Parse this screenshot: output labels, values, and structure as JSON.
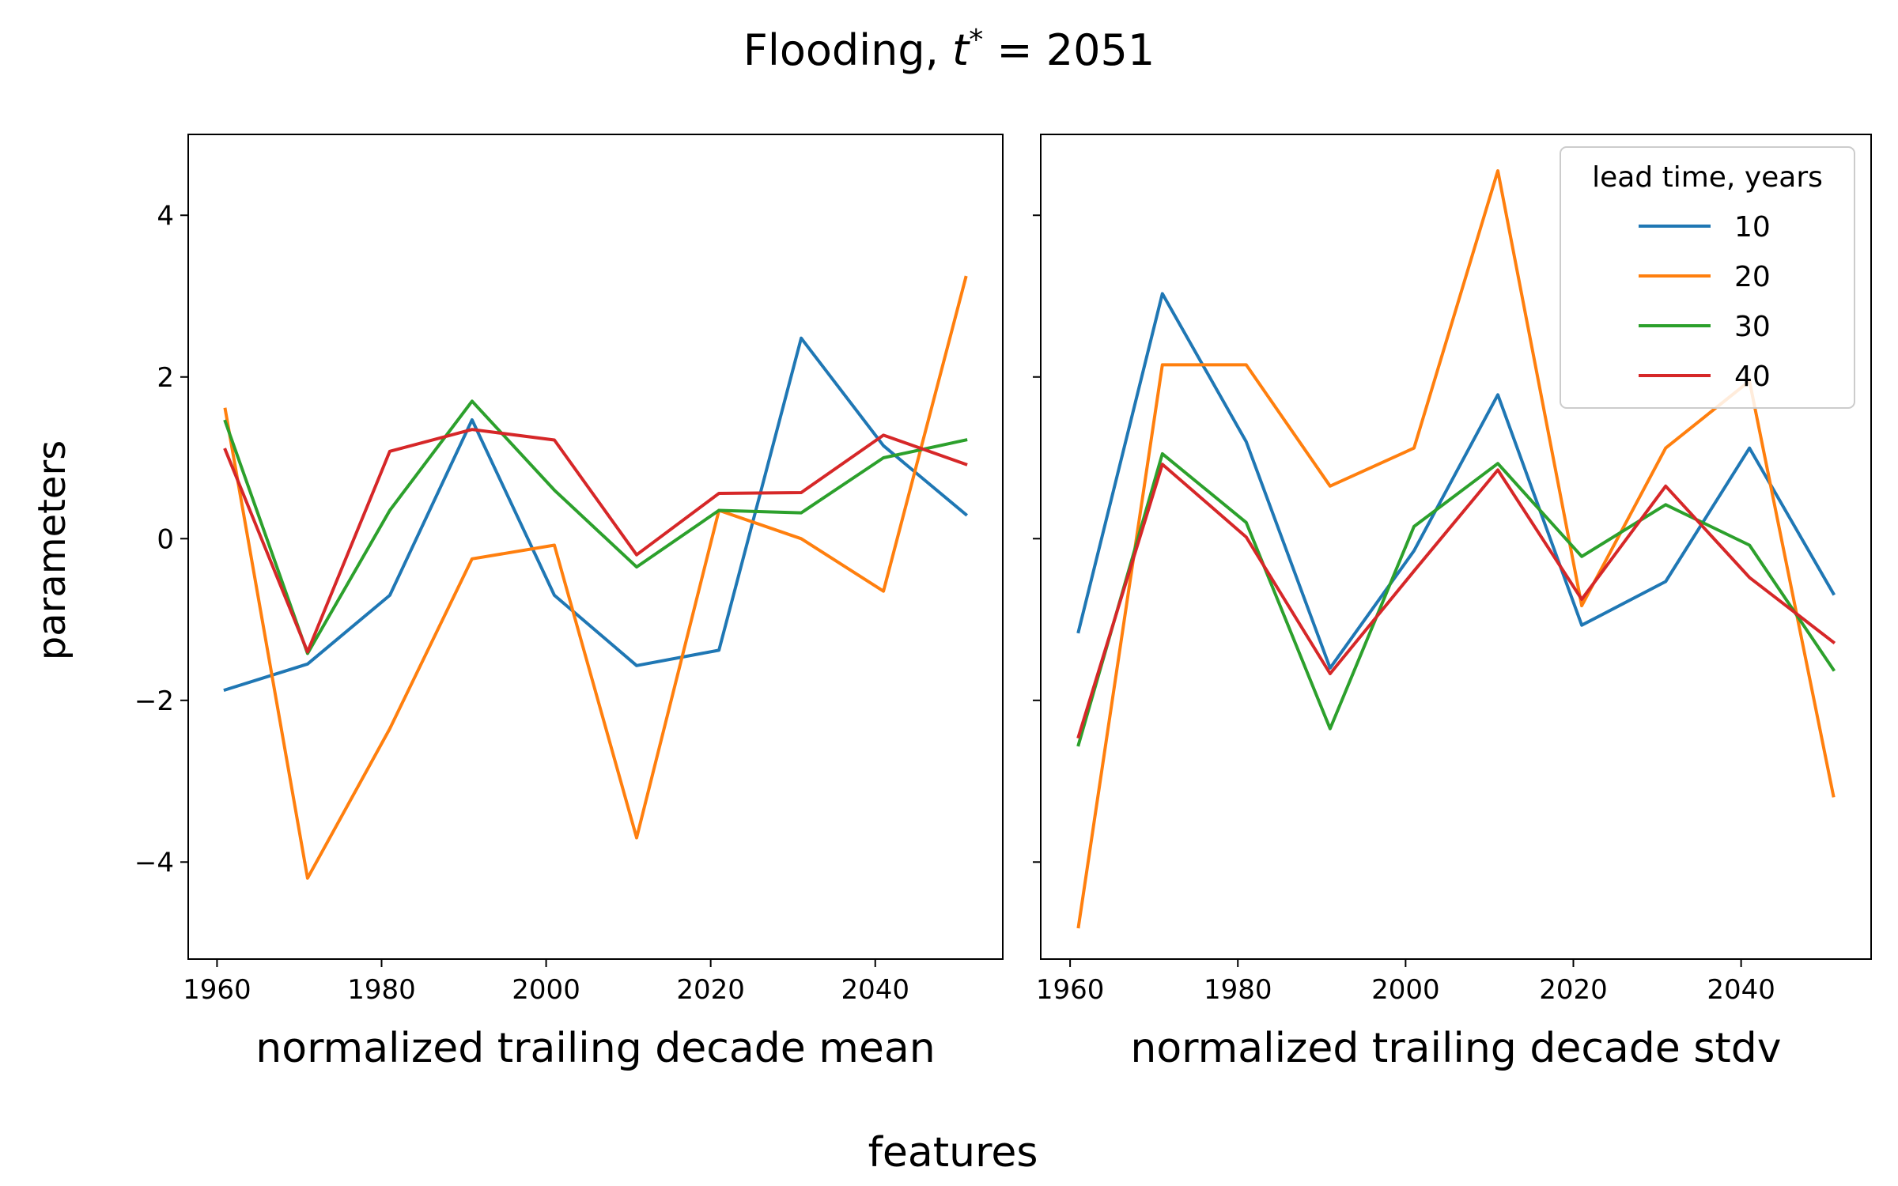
{
  "figure": {
    "title_prefix": "Flooding, ",
    "title_var": "t",
    "title_sup": "*",
    "title_suffix": " = 2051",
    "supxlabel": "features",
    "ylabel": "parameters"
  },
  "legend": {
    "title": "lead time, years",
    "placement": "upper right of right panel"
  },
  "chart_data": [
    {
      "type": "line",
      "xlabel": "normalized trailing decade mean",
      "ylabel": "parameters",
      "xlim": [
        1956.5,
        2055.5
      ],
      "ylim": [
        -5.2,
        5.0
      ],
      "xticks": [
        1960,
        1980,
        2000,
        2020,
        2040
      ],
      "yticks": [
        -4,
        -2,
        0,
        2,
        4
      ],
      "ytick_labels": [
        "−4",
        "−2",
        "0",
        "2",
        "4"
      ],
      "x": [
        1961,
        1971,
        1981,
        1991,
        2001,
        2011,
        2021,
        2031,
        2041,
        2051
      ],
      "series": [
        {
          "name": "10",
          "color": "#1f77b4",
          "values": [
            -1.87,
            -1.55,
            -0.7,
            1.47,
            -0.7,
            -1.57,
            -1.38,
            2.48,
            1.15,
            0.3
          ]
        },
        {
          "name": "20",
          "color": "#ff7f0e",
          "values": [
            1.6,
            -4.2,
            -2.35,
            -0.25,
            -0.08,
            -3.7,
            0.35,
            0.0,
            -0.65,
            3.23
          ]
        },
        {
          "name": "30",
          "color": "#2ca02c",
          "values": [
            1.45,
            -1.42,
            0.35,
            1.7,
            0.6,
            -0.35,
            0.35,
            0.32,
            1.0,
            1.22
          ]
        },
        {
          "name": "40",
          "color": "#d62728",
          "values": [
            1.1,
            -1.4,
            1.08,
            1.35,
            1.22,
            -0.2,
            0.56,
            0.57,
            1.28,
            0.92
          ]
        }
      ]
    },
    {
      "type": "line",
      "xlabel": "normalized trailing decade stdv",
      "xlim": [
        1956.5,
        2055.5
      ],
      "ylim": [
        -5.2,
        5.0
      ],
      "xticks": [
        1960,
        1980,
        2000,
        2020,
        2040
      ],
      "yticks": [
        -4,
        -2,
        0,
        2,
        4
      ],
      "x": [
        1961,
        1971,
        1981,
        1991,
        2001,
        2011,
        2021,
        2031,
        2041,
        2051
      ],
      "series": [
        {
          "name": "10",
          "color": "#1f77b4",
          "values": [
            -1.15,
            3.03,
            1.2,
            -1.6,
            -0.15,
            1.78,
            -1.07,
            -0.53,
            1.12,
            -0.68
          ]
        },
        {
          "name": "20",
          "color": "#ff7f0e",
          "values": [
            -4.8,
            2.15,
            2.15,
            0.65,
            1.12,
            4.55,
            -0.83,
            1.12,
            1.95,
            -3.18
          ]
        },
        {
          "name": "30",
          "color": "#2ca02c",
          "values": [
            -2.55,
            1.05,
            0.2,
            -2.35,
            0.15,
            0.93,
            -0.22,
            0.42,
            -0.08,
            -1.62
          ]
        },
        {
          "name": "40",
          "color": "#d62728",
          "values": [
            -2.45,
            0.92,
            0.02,
            -1.67,
            -0.4,
            0.85,
            -0.75,
            0.65,
            -0.48,
            -1.28
          ]
        }
      ]
    }
  ]
}
